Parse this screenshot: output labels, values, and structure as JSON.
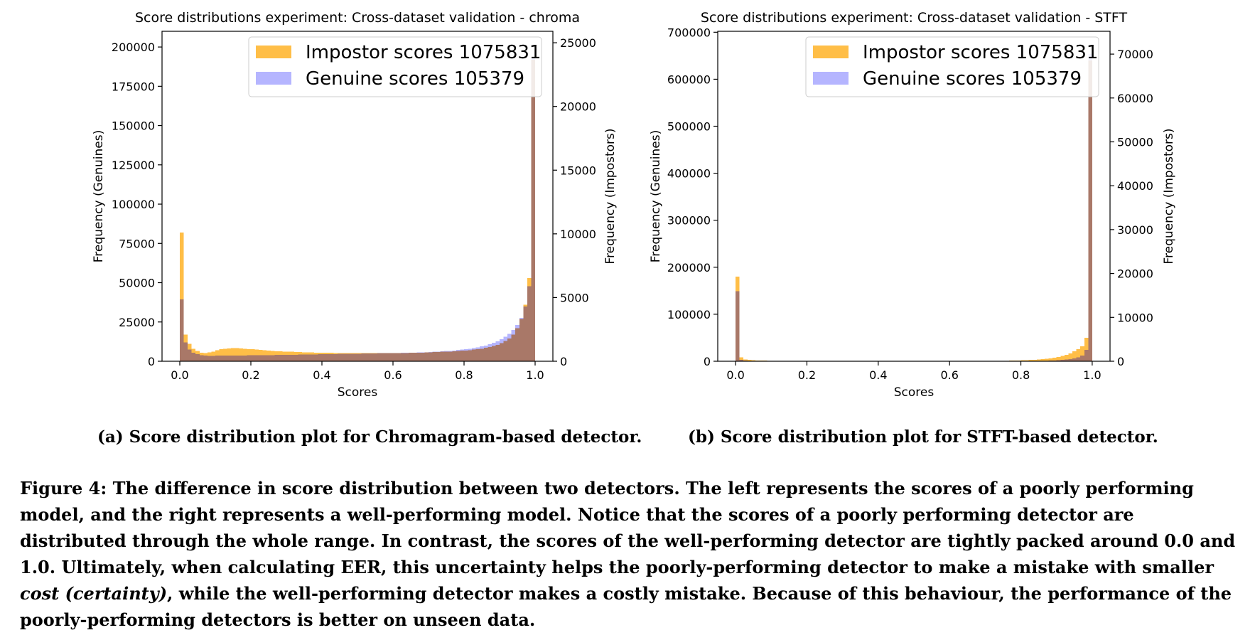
{
  "chart_data": [
    {
      "type": "histogram",
      "title": "Score distributions experiment: Cross-dataset validation - chroma",
      "xlabel": "Scores",
      "ylabel_left": "Frequency (Genuines)",
      "ylabel_right": "Frequency (Impostors)",
      "xlim": [
        -0.05,
        1.05
      ],
      "ylim_left": [
        0,
        210000
      ],
      "ylim_right": [
        0,
        25900
      ],
      "xticks": [
        "0.0",
        "0.2",
        "0.4",
        "0.6",
        "0.8",
        "1.0"
      ],
      "xtick_values": [
        0,
        0.2,
        0.4,
        0.6,
        0.8,
        1.0
      ],
      "yticks_left": [
        "0",
        "25000",
        "50000",
        "75000",
        "100000",
        "125000",
        "150000",
        "175000",
        "200000"
      ],
      "ytick_values_left": [
        0,
        25000,
        50000,
        75000,
        100000,
        125000,
        150000,
        175000,
        200000
      ],
      "yticks_right": [
        "0",
        "5000",
        "10000",
        "15000",
        "20000",
        "25000"
      ],
      "ytick_values_right": [
        0,
        5000,
        10000,
        15000,
        20000,
        25000
      ],
      "legend_position": "top-right",
      "series": [
        {
          "name": "Impostor scores 1075831",
          "color": "#ffa500",
          "axis": "left",
          "values": [
            82000,
            17000,
            11000,
            8000,
            6500,
            5500,
            5300,
            5600,
            6200,
            7000,
            7600,
            8000,
            8200,
            8300,
            8300,
            8200,
            8000,
            7800,
            7600,
            7400,
            7200,
            7000,
            6800,
            6600,
            6400,
            6300,
            6200,
            6100,
            6000,
            5900,
            5800,
            5700,
            5600,
            5600,
            5500,
            5500,
            5400,
            5400,
            5400,
            5300,
            5300,
            5300,
            5300,
            5300,
            5200,
            5200,
            5200,
            5200,
            5200,
            5200,
            5200,
            5200,
            5200,
            5200,
            5200,
            5300,
            5300,
            5300,
            5400,
            5400,
            5500,
            5500,
            5600,
            5700,
            5800,
            5900,
            6000,
            6100,
            6200,
            6400,
            6500,
            6700,
            6900,
            7100,
            7400,
            7700,
            8000,
            8500,
            9000,
            9700,
            10500,
            11500,
            12800,
            14500,
            17000,
            21000,
            27000,
            36000,
            53000,
            192000
          ]
        },
        {
          "name": "Genuine scores 105379",
          "color": "#9999ff",
          "axis": "right",
          "values": [
            4850,
            1470,
            920,
            670,
            560,
            480,
            440,
            430,
            430,
            440,
            450,
            450,
            460,
            460,
            460,
            460,
            460,
            470,
            470,
            470,
            470,
            480,
            480,
            480,
            490,
            490,
            500,
            500,
            510,
            510,
            520,
            520,
            530,
            530,
            540,
            550,
            550,
            560,
            560,
            570,
            580,
            580,
            590,
            590,
            600,
            600,
            610,
            610,
            620,
            620,
            630,
            630,
            640,
            640,
            650,
            650,
            660,
            660,
            670,
            680,
            690,
            700,
            710,
            720,
            740,
            760,
            780,
            800,
            820,
            850,
            880,
            910,
            950,
            990,
            1040,
            1100,
            1160,
            1240,
            1330,
            1440,
            1570,
            1730,
            1920,
            2160,
            2450,
            2850,
            3400,
            4300,
            5900,
            23900
          ]
        }
      ]
    },
    {
      "type": "histogram",
      "title": "Score distributions experiment: Cross-dataset validation - STFT",
      "xlabel": "Scores",
      "ylabel_left": "Frequency (Genuines)",
      "ylabel_right": "Frequency (Impostors)",
      "xlim": [
        -0.05,
        1.05
      ],
      "ylim_left": [
        0,
        702000
      ],
      "ylim_right": [
        0,
        75200
      ],
      "xticks": [
        "0.0",
        "0.2",
        "0.4",
        "0.6",
        "0.8",
        "1.0"
      ],
      "xtick_values": [
        0,
        0.2,
        0.4,
        0.6,
        0.8,
        1.0
      ],
      "yticks_left": [
        "0",
        "100000",
        "200000",
        "300000",
        "400000",
        "500000",
        "600000",
        "700000"
      ],
      "ytick_values_left": [
        0,
        100000,
        200000,
        300000,
        400000,
        500000,
        600000,
        700000
      ],
      "yticks_right": [
        "0",
        "10000",
        "20000",
        "30000",
        "40000",
        "50000",
        "60000",
        "70000"
      ],
      "ytick_values_right": [
        0,
        10000,
        20000,
        30000,
        40000,
        50000,
        60000,
        70000
      ],
      "legend_position": "top-right",
      "series": [
        {
          "name": "Impostor scores 1075831",
          "color": "#ffa500",
          "axis": "left",
          "values": [
            180000,
            8000,
            4000,
            2800,
            2200,
            1800,
            1500,
            1300,
            1100,
            1000,
            900,
            850,
            800,
            750,
            700,
            650,
            600,
            580,
            560,
            540,
            520,
            500,
            490,
            480,
            470,
            460,
            450,
            440,
            430,
            420,
            410,
            400,
            400,
            400,
            390,
            390,
            390,
            390,
            380,
            380,
            380,
            380,
            380,
            380,
            380,
            380,
            390,
            390,
            390,
            400,
            400,
            410,
            420,
            430,
            440,
            450,
            470,
            490,
            510,
            540,
            570,
            600,
            640,
            690,
            750,
            820,
            900,
            1000,
            1120,
            1270,
            1450,
            1680,
            1960,
            2300,
            2700,
            3200,
            3800,
            4500,
            5300,
            6300,
            7500,
            9000,
            11000,
            13500,
            17000,
            21000,
            26000,
            32000,
            50000,
            640000
          ]
        },
        {
          "name": "Genuine scores 105379",
          "color": "#9999ff",
          "axis": "right",
          "values": [
            16000,
            300,
            150,
            110,
            90,
            80,
            70,
            60,
            55,
            50,
            45,
            40,
            38,
            36,
            34,
            32,
            30,
            30,
            30,
            30,
            30,
            30,
            30,
            30,
            30,
            30,
            30,
            30,
            30,
            30,
            30,
            30,
            30,
            30,
            30,
            30,
            30,
            30,
            30,
            30,
            30,
            30,
            30,
            30,
            30,
            30,
            30,
            30,
            30,
            30,
            30,
            30,
            30,
            30,
            30,
            30,
            30,
            30,
            30,
            30,
            30,
            30,
            30,
            30,
            30,
            30,
            30,
            30,
            30,
            30,
            35,
            40,
            45,
            50,
            60,
            70,
            80,
            100,
            120,
            150,
            190,
            240,
            300,
            380,
            480,
            650,
            900,
            1300,
            2600,
            70000
          ]
        }
      ]
    }
  ],
  "subcaption_a": "(a) Score distribution plot for Chromagram-based detector.",
  "subcaption_b": "(b) Score distribution plot for STFT-based detector.",
  "caption": {
    "part1": "Figure 4: The difference in score distribution between two detectors. The left represents the scores of a poorly performing model, and the right represents a well-performing model. Notice that the scores of a poorly performing detector are distributed through the whole range. In contrast, the scores of the well-performing detector are tightly packed around 0.0 and 1.0. Ultimately, when calculating EER, this uncertainty helps the poorly-performing detector to make a mistake with smaller ",
    "emphasis": "cost (certainty)",
    "part2": ", while the well-performing detector makes a costly mistake. Because of this behaviour, the performance of the poorly-performing detectors is better on unseen data."
  },
  "colors": {
    "impostor": "#ffa500",
    "genuine": "#9999ff",
    "overlap": "#a97868"
  }
}
